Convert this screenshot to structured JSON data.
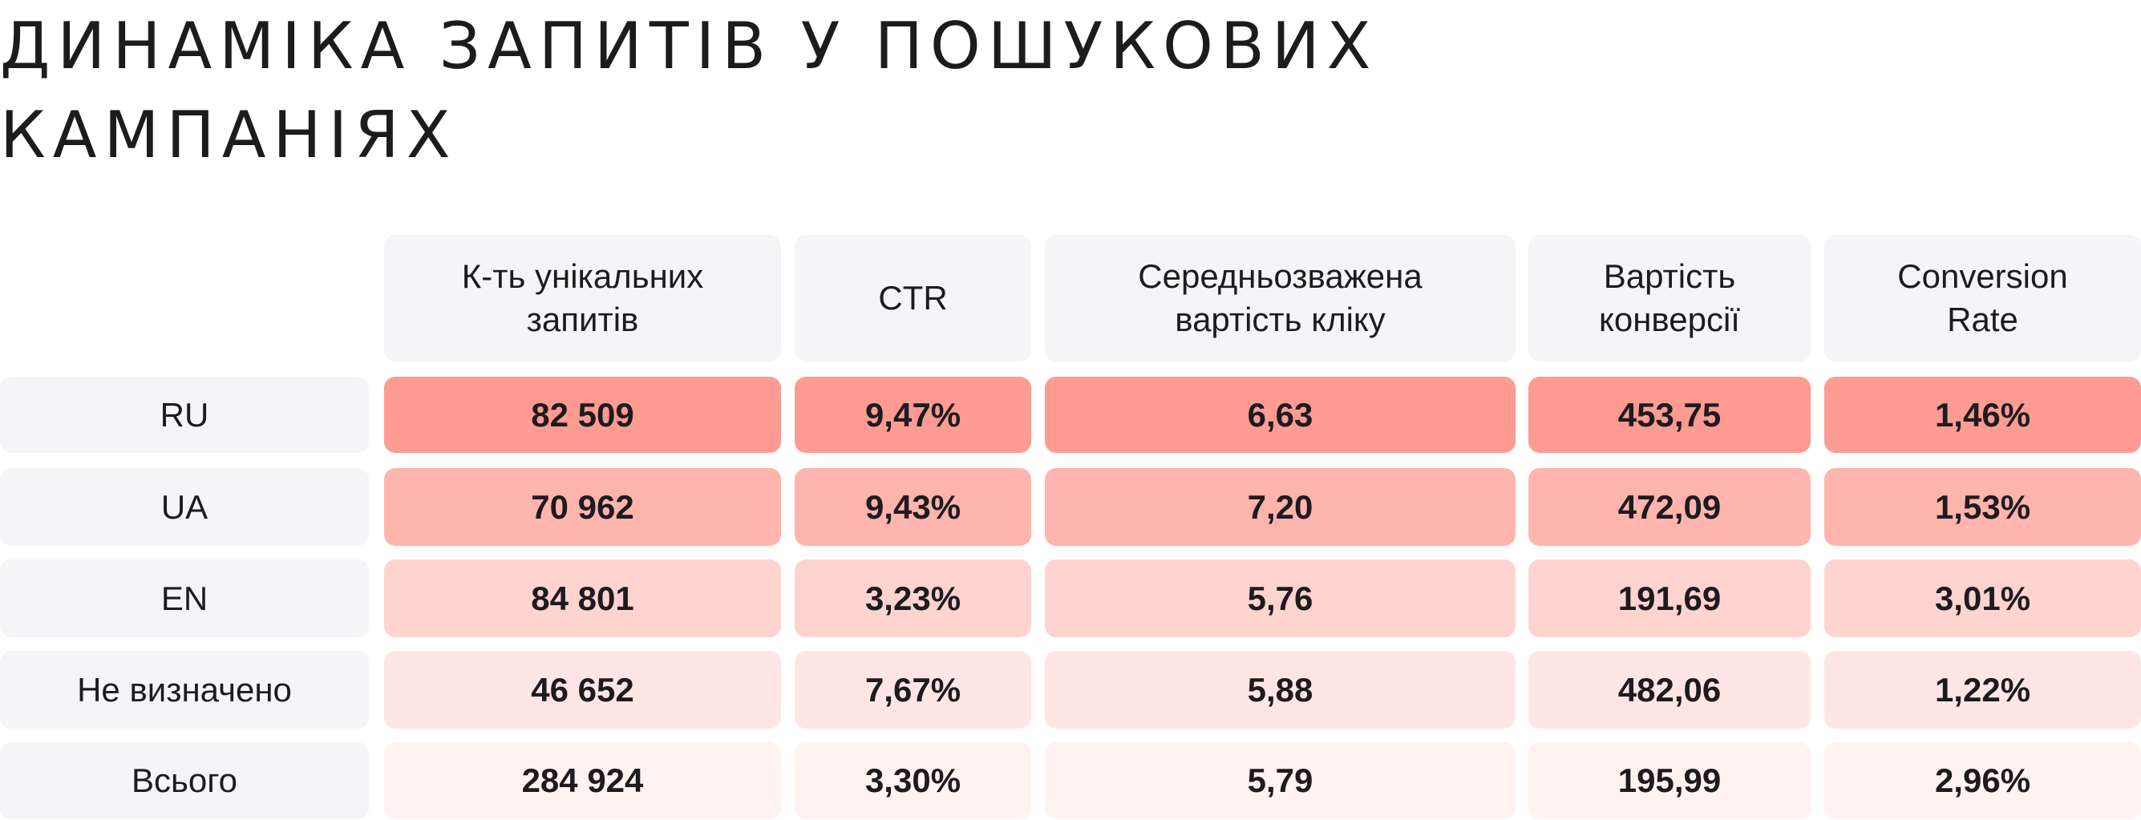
{
  "title": {
    "lines": [
      "ДИНАМІКА ЗАПИТІВ У ПОШУКОВИХ",
      "КАМПАНІЯХ"
    ]
  },
  "table": {
    "headers": [
      [
        "К-ть унікальних",
        "запитів"
      ],
      [
        "CTR"
      ],
      [
        "Середньозважена",
        "вартість кліку"
      ],
      [
        "Вартість",
        "конверсії"
      ],
      [
        "Conversion",
        "Rate"
      ]
    ],
    "rows": [
      {
        "label": "RU",
        "cells": [
          "82 509",
          "9,47%",
          "6,63",
          "453,75",
          "1,46%"
        ]
      },
      {
        "label": "UA",
        "cells": [
          "70 962",
          "9,43%",
          "7,20",
          "472,09",
          "1,53%"
        ]
      },
      {
        "label": "EN",
        "cells": [
          "84 801",
          "3,23%",
          "5,76",
          "191,69",
          "3,01%"
        ]
      },
      {
        "label": "Не визначено",
        "cells": [
          "46 652",
          "7,67%",
          "5,88",
          "482,06",
          "1,22%"
        ]
      },
      {
        "label": "Всього",
        "cells": [
          "284 924",
          "3,30%",
          "5,79",
          "195,99",
          "2,96%"
        ]
      }
    ]
  }
}
